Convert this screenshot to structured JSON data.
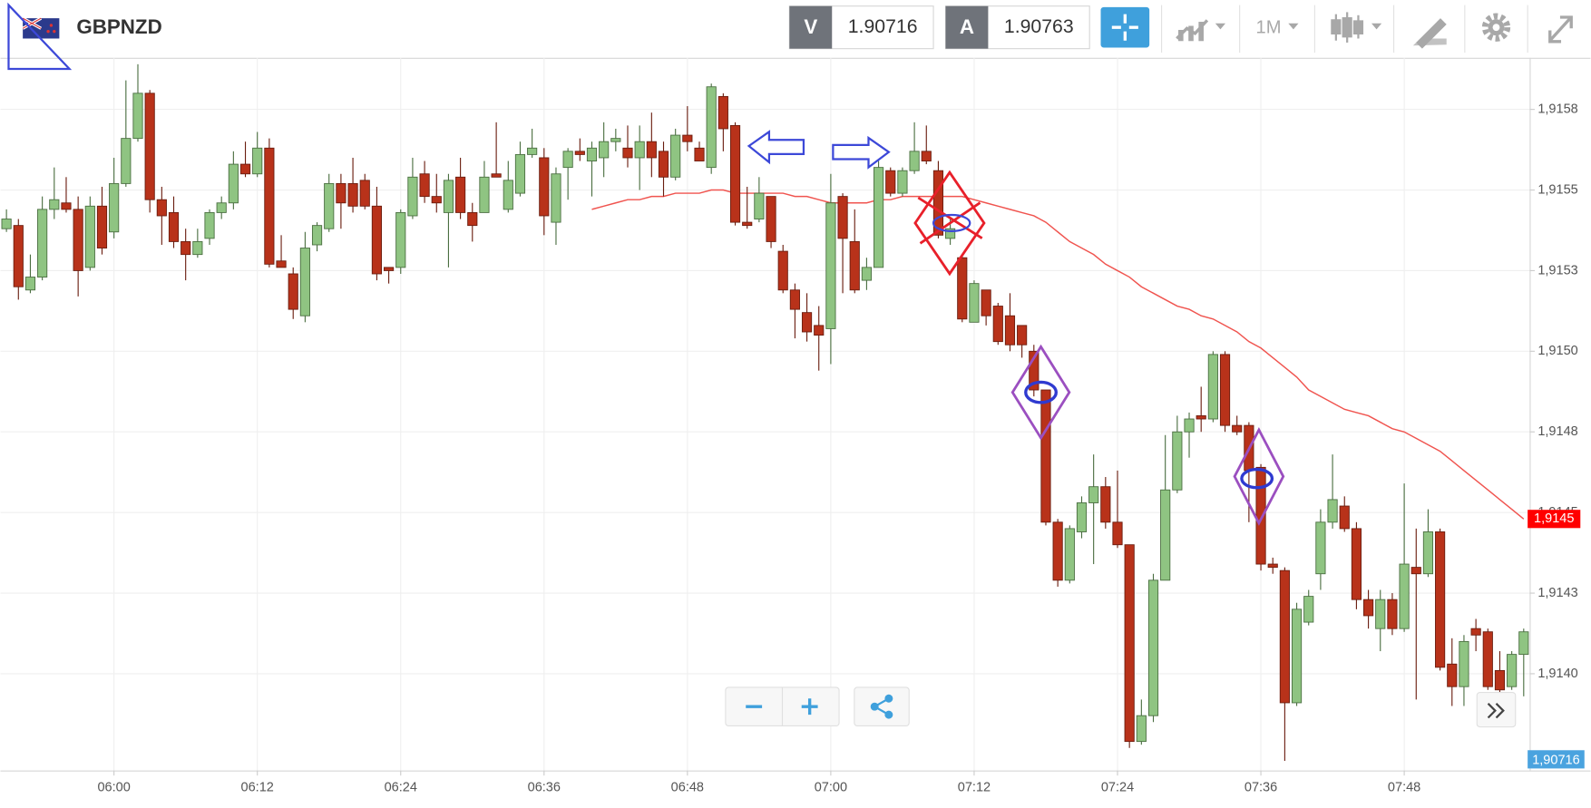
{
  "toolbar": {
    "symbol": "GBPNZD",
    "sell_label": "V",
    "sell_price": "1.90716",
    "buy_label": "A",
    "buy_price": "1.90763",
    "timeframe": "1M"
  },
  "chart_data": {
    "type": "candlestick",
    "categories": [
      null,
      null,
      null,
      null,
      null,
      null,
      null,
      null,
      null,
      "06:00",
      null,
      null,
      null,
      null,
      null,
      null,
      null,
      null,
      null,
      null,
      null,
      "06:12",
      null,
      null,
      null,
      null,
      null,
      null,
      null,
      null,
      null,
      null,
      null,
      "06:24",
      null,
      null,
      null,
      null,
      null,
      null,
      null,
      null,
      null,
      null,
      null,
      "06:36",
      null,
      null,
      null,
      null,
      null,
      null,
      null,
      null,
      null,
      null,
      null,
      "06:48",
      null,
      null,
      null,
      null,
      null,
      null,
      null,
      null,
      null,
      null,
      null,
      "07:00",
      null,
      null,
      null,
      null,
      null,
      null,
      null,
      null,
      null,
      null,
      null,
      "07:12",
      null,
      null,
      null,
      null,
      null,
      null,
      null,
      null,
      null,
      null,
      null,
      "07:24",
      null,
      null,
      null,
      null,
      null,
      null,
      null,
      null,
      null,
      null,
      null,
      "07:36",
      null,
      null,
      null,
      null,
      null,
      null,
      null,
      null,
      null,
      null,
      null,
      "07:48",
      null,
      null,
      null,
      null,
      null,
      null,
      null,
      null,
      null,
      null
    ],
    "open": [
      1.91538,
      1.91539,
      1.91519,
      1.91523,
      1.91544,
      1.91546,
      1.91544,
      1.91526,
      1.91545,
      1.91537,
      1.91552,
      1.91566,
      1.9158,
      1.91547,
      1.91543,
      1.91534,
      1.9153,
      1.91535,
      1.91543,
      1.91546,
      1.91558,
      1.91555,
      1.91563,
      1.91528,
      1.91524,
      1.91511,
      1.91533,
      1.91538,
      1.91552,
      1.91552,
      1.91553,
      1.91545,
      1.91526,
      1.91526,
      1.91542,
      1.91555,
      1.91548,
      1.91543,
      1.91554,
      1.91543,
      1.91543,
      1.91555,
      1.91544,
      1.91549,
      1.91561,
      1.9156,
      1.9154,
      1.91557,
      1.91562,
      1.91559,
      1.9156,
      1.91565,
      1.91563,
      1.9156,
      1.91565,
      1.91562,
      1.91554,
      1.91567,
      1.91563,
      1.91557,
      1.91579,
      1.9157,
      1.9154,
      1.91541,
      1.91548,
      1.91531,
      1.91519,
      1.91512,
      1.91508,
      1.91507,
      1.91548,
      1.91534,
      1.91522,
      1.91526,
      1.91556,
      1.91549,
      1.91556,
      1.91562,
      1.91556,
      1.91535,
      1.91529,
      1.91509,
      1.91519,
      1.91514,
      1.91511,
      1.91508,
      1.915,
      1.91488,
      1.91447,
      1.91429,
      1.91444,
      1.91453,
      1.91458,
      1.91447,
      1.9144,
      1.91379,
      1.91387,
      1.91429,
      1.91457,
      1.91475,
      1.9148,
      1.91479,
      1.91499,
      1.91477,
      1.91477,
      1.91464,
      1.91434,
      1.91432,
      1.91391,
      1.91416,
      1.91431,
      1.91447,
      1.91452,
      1.91445,
      1.91423,
      1.91414,
      1.91423,
      1.91414,
      1.91433,
      1.91431,
      1.91444,
      1.91403,
      1.91396,
      1.91414,
      1.91413,
      1.91401,
      1.91396,
      1.91406
    ],
    "close": [
      1.91541,
      1.9152,
      1.91523,
      1.91544,
      1.91547,
      1.91544,
      1.91525,
      1.91545,
      1.91532,
      1.91552,
      1.91566,
      1.9158,
      1.91547,
      1.91542,
      1.91534,
      1.9153,
      1.91534,
      1.91543,
      1.91546,
      1.91558,
      1.91555,
      1.91563,
      1.91527,
      1.91526,
      1.91513,
      1.91532,
      1.91539,
      1.91552,
      1.91546,
      1.91545,
      1.91545,
      1.91524,
      1.91525,
      1.91543,
      1.91554,
      1.91548,
      1.91546,
      1.91553,
      1.91543,
      1.91539,
      1.91554,
      1.91554,
      1.91553,
      1.91561,
      1.91563,
      1.91542,
      1.91555,
      1.91562,
      1.91561,
      1.91563,
      1.91565,
      1.91566,
      1.9156,
      1.91565,
      1.9156,
      1.91554,
      1.91567,
      1.91565,
      1.91559,
      1.91582,
      1.91569,
      1.9154,
      1.91539,
      1.91549,
      1.91534,
      1.91519,
      1.91513,
      1.91506,
      1.91505,
      1.91546,
      1.91535,
      1.91519,
      1.91526,
      1.91557,
      1.91549,
      1.91556,
      1.91562,
      1.91559,
      1.91536,
      1.91538,
      1.9151,
      1.91521,
      1.91511,
      1.91503,
      1.91502,
      1.91502,
      1.91488,
      1.91447,
      1.91429,
      1.91445,
      1.91453,
      1.91458,
      1.91447,
      1.9144,
      1.91379,
      1.91387,
      1.91429,
      1.91457,
      1.91475,
      1.91479,
      1.91479,
      1.91499,
      1.91477,
      1.91475,
      1.91463,
      1.91434,
      1.91433,
      1.91391,
      1.9142,
      1.91424,
      1.91447,
      1.91454,
      1.91445,
      1.91423,
      1.91418,
      1.91423,
      1.91414,
      1.91434,
      1.91431,
      1.91444,
      1.91402,
      1.91396,
      1.9141,
      1.91412,
      1.91396,
      1.91395,
      1.91406,
      1.91413
    ],
    "high": [
      1.91544,
      1.91541,
      1.9153,
      1.91548,
      1.91557,
      1.91554,
      1.91548,
      1.91548,
      1.91551,
      1.9156,
      1.91584,
      1.91589,
      1.91581,
      1.91551,
      1.91548,
      1.91538,
      1.91538,
      1.91544,
      1.91548,
      1.91562,
      1.91565,
      1.91568,
      1.91566,
      1.91536,
      1.91526,
      1.91537,
      1.9154,
      1.91555,
      1.91555,
      1.9156,
      1.91555,
      1.91551,
      1.91526,
      1.91544,
      1.9156,
      1.91559,
      1.91555,
      1.91555,
      1.9156,
      1.91546,
      1.91559,
      1.91571,
      1.91559,
      1.91565,
      1.91569,
      1.91563,
      1.91557,
      1.91563,
      1.91566,
      1.91565,
      1.91571,
      1.91569,
      1.9157,
      1.9157,
      1.91574,
      1.91565,
      1.91569,
      1.91576,
      1.91565,
      1.91583,
      1.9158,
      1.91571,
      1.91551,
      1.91554,
      1.91548,
      1.91533,
      1.91521,
      1.91518,
      1.91514,
      1.91555,
      1.91549,
      1.91544,
      1.91529,
      1.91559,
      1.91557,
      1.91557,
      1.91571,
      1.9157,
      1.91559,
      1.91541,
      1.9153,
      1.91522,
      1.91519,
      1.91515,
      1.91518,
      1.91508,
      1.91502,
      1.91488,
      1.91448,
      1.91446,
      1.91455,
      1.91468,
      1.91461,
      1.91463,
      1.9144,
      1.91392,
      1.91431,
      1.91474,
      1.9148,
      1.91481,
      1.91489,
      1.915,
      1.915,
      1.9148,
      1.91478,
      1.91465,
      1.91436,
      1.91433,
      1.91422,
      1.91426,
      1.91451,
      1.91468,
      1.91455,
      1.91447,
      1.91426,
      1.91426,
      1.91425,
      1.91459,
      1.91445,
      1.91451,
      1.91445,
      1.91411,
      1.91412,
      1.91417,
      1.91414,
      1.91407,
      1.91407,
      1.91414
    ],
    "low": [
      1.91537,
      1.91516,
      1.91518,
      1.91522,
      1.91541,
      1.91543,
      1.91517,
      1.91525,
      1.9153,
      1.91535,
      1.91551,
      1.91565,
      1.91543,
      1.91533,
      1.91532,
      1.91522,
      1.91529,
      1.91533,
      1.91541,
      1.91544,
      1.91554,
      1.91554,
      1.91526,
      1.91526,
      1.9151,
      1.91509,
      1.91531,
      1.91537,
      1.91538,
      1.91543,
      1.91544,
      1.91522,
      1.91521,
      1.91524,
      1.91541,
      1.91546,
      1.91543,
      1.91526,
      1.91541,
      1.91534,
      1.91543,
      1.91554,
      1.91543,
      1.91548,
      1.9156,
      1.91536,
      1.91533,
      1.91547,
      1.91559,
      1.91548,
      1.91554,
      1.91562,
      1.91557,
      1.9155,
      1.91554,
      1.91548,
      1.91553,
      1.91562,
      1.91559,
      1.91555,
      1.91562,
      1.91539,
      1.91538,
      1.9154,
      1.91532,
      1.91518,
      1.91504,
      1.91503,
      1.91494,
      1.91496,
      1.91518,
      1.91518,
      1.91519,
      1.91526,
      1.91548,
      1.91548,
      1.91555,
      1.91558,
      1.91535,
      1.91533,
      1.91509,
      1.91509,
      1.91508,
      1.91502,
      1.915,
      1.91498,
      1.91486,
      1.91446,
      1.91427,
      1.91428,
      1.91442,
      1.91434,
      1.91445,
      1.91439,
      1.91377,
      1.91378,
      1.91385,
      1.91429,
      1.91456,
      1.91467,
      1.91475,
      1.91478,
      1.91475,
      1.91474,
      1.91447,
      1.91432,
      1.91431,
      1.91373,
      1.9139,
      1.91415,
      1.91426,
      1.91445,
      1.91444,
      1.9142,
      1.91414,
      1.91407,
      1.91412,
      1.91413,
      1.91392,
      1.9143,
      1.91401,
      1.9139,
      1.9139,
      1.91407,
      1.91395,
      1.91393,
      1.91395,
      1.91393
    ],
    "moving_average": [
      null,
      null,
      null,
      null,
      null,
      null,
      null,
      null,
      null,
      null,
      null,
      null,
      null,
      null,
      null,
      null,
      null,
      null,
      null,
      null,
      null,
      null,
      null,
      null,
      null,
      null,
      null,
      null,
      null,
      null,
      null,
      null,
      null,
      null,
      null,
      null,
      null,
      null,
      null,
      null,
      null,
      null,
      null,
      null,
      null,
      null,
      null,
      null,
      null,
      1.91544,
      1.91545,
      1.91546,
      1.91547,
      1.91547,
      1.91548,
      1.91548,
      1.91549,
      1.91549,
      1.91549,
      1.9155,
      1.9155,
      1.91549,
      1.91549,
      1.91549,
      1.91549,
      1.91549,
      1.91548,
      1.91548,
      1.91547,
      1.91546,
      1.91546,
      1.91546,
      1.91546,
      1.91547,
      1.91547,
      1.91548,
      1.91548,
      1.91548,
      1.91548,
      1.91548,
      1.91548,
      1.91547,
      1.91546,
      1.91545,
      1.91544,
      1.91543,
      1.91542,
      1.9154,
      1.91537,
      1.91534,
      1.91532,
      1.9153,
      1.91527,
      1.91525,
      1.91523,
      1.9152,
      1.91518,
      1.91516,
      1.91514,
      1.91513,
      1.91511,
      1.9151,
      1.91508,
      1.91506,
      1.91503,
      1.91501,
      1.91498,
      1.91495,
      1.91492,
      1.91488,
      1.91486,
      1.91484,
      1.91482,
      1.91481,
      1.9148,
      1.91478,
      1.91476,
      1.91475,
      1.91473,
      1.91471,
      1.91469,
      1.91466,
      1.91463,
      1.9146,
      1.91457,
      1.91454,
      1.91451,
      1.91448
    ],
    "up_color": "#8fc482",
    "down_color": "#b8321a",
    "ma_color": "#f0544f",
    "ylim": [
      1.9137,
      1.91591
    ],
    "yticks": [
      {
        "value": 1.91575,
        "label": "1,9158"
      },
      {
        "value": 1.9155,
        "label": "1,9155"
      },
      {
        "value": 1.91525,
        "label": "1,9153"
      },
      {
        "value": 1.915,
        "label": "1,9150"
      },
      {
        "value": 1.91475,
        "label": "1,9148"
      },
      {
        "value": 1.9145,
        "label": "1,9145"
      },
      {
        "value": 1.91425,
        "label": "1,9143"
      },
      {
        "value": 1.914,
        "label": "1,9140"
      }
    ],
    "grid": true,
    "ma_tag": "1,9145",
    "bid_tag": "1,90716"
  }
}
